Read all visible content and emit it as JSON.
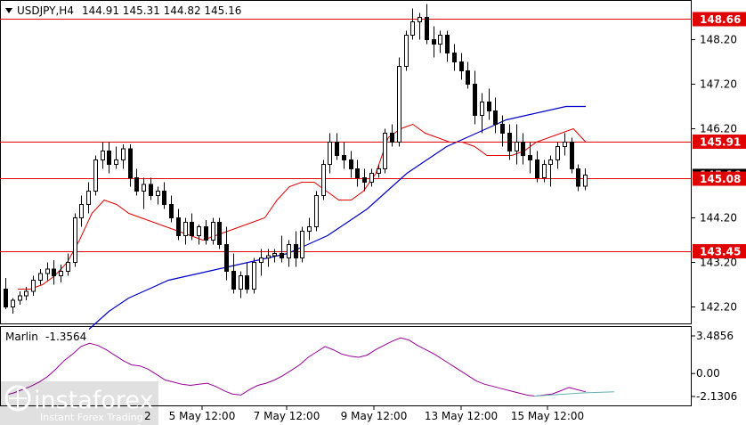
{
  "header": {
    "symbol": "USDJPY,H4",
    "ohlc": "144.91 145.31 144.82 145.16"
  },
  "indicator": {
    "name": "Marlin",
    "value": "-1.3564",
    "ticks": [
      "3.4856",
      "0.00",
      "-2.1306"
    ]
  },
  "watermark": {
    "brand": "instaforex",
    "tagline": "Instant Forex Trading"
  },
  "colors": {
    "candle_bull": "#ffffff",
    "candle_bear": "#000000",
    "sma_fast": "#e00000",
    "sma_slow": "#0000cc",
    "level_line": "#e00000",
    "oscillator": "#990099",
    "oscillator_signal": "#66b2b2"
  },
  "chart_data": {
    "type": "candlestick",
    "y_range": [
      141.9,
      149.15
    ],
    "y_ticks": [
      "148.20",
      "147.20",
      "146.20",
      "144.20",
      "143.20",
      "142.20"
    ],
    "x_ticks": [
      "5 May 12:00",
      "7 May 12:00",
      "9 May 12:00",
      "13 May 12:00",
      "15 May 12:00"
    ],
    "x_ticks_partial": "2",
    "levels": [
      {
        "value": 148.66,
        "label": "148.66"
      },
      {
        "value": 145.91,
        "label": "145.91"
      },
      {
        "value": 145.08,
        "label": "145.08"
      },
      {
        "value": 143.45,
        "label": "143.45"
      }
    ],
    "current_price": 145.16,
    "candles": [
      [
        142.6,
        142.85,
        142.15,
        142.2
      ],
      [
        142.2,
        142.4,
        142.05,
        142.35
      ],
      [
        142.35,
        142.55,
        142.25,
        142.45
      ],
      [
        142.45,
        142.65,
        142.35,
        142.55
      ],
      [
        142.55,
        142.9,
        142.45,
        142.8
      ],
      [
        142.8,
        143.05,
        142.7,
        142.95
      ],
      [
        142.95,
        143.2,
        142.8,
        143.05
      ],
      [
        143.05,
        143.25,
        142.7,
        142.9
      ],
      [
        142.9,
        143.15,
        142.75,
        143.0
      ],
      [
        143.0,
        143.4,
        142.9,
        143.2
      ],
      [
        143.2,
        144.3,
        143.1,
        144.2
      ],
      [
        144.2,
        144.7,
        144.0,
        144.5
      ],
      [
        144.5,
        145.0,
        144.3,
        144.8
      ],
      [
        144.8,
        145.6,
        144.7,
        145.5
      ],
      [
        145.5,
        145.9,
        145.3,
        145.7
      ],
      [
        145.7,
        145.9,
        145.2,
        145.4
      ],
      [
        145.4,
        145.8,
        145.3,
        145.5
      ],
      [
        145.5,
        145.85,
        145.3,
        145.75
      ],
      [
        145.75,
        145.85,
        144.9,
        145.1
      ],
      [
        145.1,
        145.3,
        144.7,
        144.8
      ],
      [
        144.8,
        145.1,
        144.4,
        144.95
      ],
      [
        144.95,
        145.1,
        144.6,
        144.7
      ],
      [
        144.7,
        144.9,
        144.5,
        144.8
      ],
      [
        144.8,
        145.0,
        144.4,
        144.5
      ],
      [
        144.5,
        144.7,
        144.1,
        144.2
      ],
      [
        144.2,
        144.4,
        143.7,
        143.8
      ],
      [
        143.8,
        144.2,
        143.6,
        144.1
      ],
      [
        144.1,
        144.3,
        143.7,
        143.8
      ],
      [
        143.8,
        144.05,
        143.6,
        144.0
      ],
      [
        144.0,
        144.15,
        143.6,
        143.7
      ],
      [
        143.7,
        144.2,
        143.6,
        144.1
      ],
      [
        144.1,
        144.2,
        143.5,
        143.6
      ],
      [
        143.6,
        144.0,
        142.8,
        143.0
      ],
      [
        143.0,
        143.4,
        142.5,
        142.6
      ],
      [
        142.6,
        143.0,
        142.4,
        142.9
      ],
      [
        142.9,
        143.2,
        142.5,
        142.6
      ],
      [
        142.6,
        143.3,
        142.5,
        143.2
      ],
      [
        143.2,
        143.5,
        142.9,
        143.3
      ],
      [
        143.3,
        143.5,
        143.1,
        143.35
      ],
      [
        143.35,
        143.5,
        143.2,
        143.4
      ],
      [
        143.4,
        143.8,
        143.2,
        143.3
      ],
      [
        143.3,
        143.7,
        143.1,
        143.6
      ],
      [
        143.6,
        143.9,
        143.1,
        143.3
      ],
      [
        143.3,
        144.0,
        143.2,
        143.9
      ],
      [
        143.9,
        144.2,
        143.7,
        144.0
      ],
      [
        144.0,
        144.8,
        143.9,
        144.7
      ],
      [
        144.7,
        145.5,
        144.6,
        145.4
      ],
      [
        145.4,
        146.1,
        145.2,
        145.9
      ],
      [
        145.9,
        146.1,
        145.5,
        145.6
      ],
      [
        145.6,
        145.9,
        145.3,
        145.5
      ],
      [
        145.5,
        145.7,
        145.1,
        145.3
      ],
      [
        145.3,
        145.5,
        144.9,
        145.1
      ],
      [
        145.1,
        145.3,
        144.8,
        145.0
      ],
      [
        145.0,
        145.3,
        144.9,
        145.2
      ],
      [
        145.2,
        145.4,
        145.1,
        145.3
      ],
      [
        145.3,
        146.2,
        145.2,
        146.1
      ],
      [
        146.1,
        146.3,
        145.8,
        145.9
      ],
      [
        145.9,
        147.8,
        145.8,
        147.6
      ],
      [
        147.6,
        148.4,
        147.5,
        148.3
      ],
      [
        148.3,
        148.9,
        148.2,
        148.6
      ],
      [
        148.6,
        148.8,
        148.2,
        148.7
      ],
      [
        148.7,
        149.0,
        148.1,
        148.2
      ],
      [
        148.2,
        148.5,
        147.8,
        148.1
      ],
      [
        148.1,
        148.4,
        147.9,
        148.3
      ],
      [
        148.3,
        148.4,
        147.7,
        147.9
      ],
      [
        147.9,
        148.1,
        147.5,
        147.7
      ],
      [
        147.7,
        147.9,
        147.3,
        147.5
      ],
      [
        147.5,
        147.7,
        147.1,
        147.2
      ],
      [
        147.2,
        147.5,
        146.3,
        146.5
      ],
      [
        146.5,
        147.0,
        146.1,
        146.8
      ],
      [
        146.8,
        147.1,
        146.4,
        146.6
      ],
      [
        146.6,
        146.9,
        146.1,
        146.3
      ],
      [
        146.3,
        146.5,
        145.8,
        146.1
      ],
      [
        146.1,
        146.3,
        145.5,
        145.7
      ],
      [
        145.7,
        146.3,
        145.4,
        145.9
      ],
      [
        145.9,
        146.1,
        145.4,
        145.6
      ],
      [
        145.6,
        145.9,
        145.2,
        145.5
      ],
      [
        145.5,
        145.7,
        145.0,
        145.1
      ],
      [
        145.1,
        145.5,
        145.0,
        145.4
      ],
      [
        145.4,
        145.6,
        144.9,
        145.5
      ],
      [
        145.5,
        145.9,
        145.3,
        145.8
      ],
      [
        145.8,
        146.1,
        145.6,
        145.9
      ],
      [
        145.9,
        146.0,
        145.2,
        145.3
      ],
      [
        145.3,
        145.4,
        144.8,
        144.91
      ],
      [
        144.91,
        145.31,
        144.82,
        145.16
      ]
    ],
    "sma_fast": [
      142.6,
      142.6,
      142.7,
      142.9,
      143.2,
      143.7,
      144.3,
      144.6,
      144.5,
      144.3,
      144.2,
      144.1,
      144.0,
      143.9,
      143.8,
      143.7,
      143.8,
      143.9,
      144.0,
      144.1,
      144.2,
      144.6,
      144.9,
      145.0,
      145.0,
      144.8,
      144.6,
      144.6,
      144.8,
      145.2,
      146.0,
      146.2,
      146.3,
      146.1,
      146.0,
      145.9,
      145.9,
      145.8,
      145.6,
      145.6,
      145.6,
      145.7,
      145.9,
      146.0,
      146.1,
      146.2,
      145.9
    ],
    "sma_slow": [
      141.7,
      142.1,
      142.4,
      142.6,
      142.8,
      142.9,
      143.0,
      143.1,
      143.2,
      143.3,
      143.4,
      143.6,
      143.8,
      144.1,
      144.4,
      144.8,
      145.2,
      145.5,
      145.8,
      146.0,
      146.2,
      146.4,
      146.5,
      146.6,
      146.7,
      146.7
    ],
    "oscillator": [
      -2.0,
      -1.8,
      -1.5,
      -1.2,
      -0.8,
      -0.3,
      0.4,
      1.2,
      1.8,
      2.5,
      2.8,
      2.6,
      2.2,
      1.7,
      1.2,
      0.8,
      0.7,
      0.4,
      -0.1,
      -0.6,
      -0.8,
      -1.0,
      -1.1,
      -1.0,
      -0.9,
      -1.2,
      -1.6,
      -1.9,
      -2.0,
      -1.5,
      -1.1,
      -0.9,
      -0.6,
      -0.2,
      0.3,
      0.8,
      1.5,
      2.0,
      2.5,
      2.2,
      1.8,
      1.6,
      1.5,
      1.7,
      2.2,
      2.6,
      3.0,
      3.3,
      3.1,
      2.6,
      2.2,
      1.8,
      1.3,
      0.8,
      0.3,
      -0.2,
      -0.7,
      -1.0,
      -1.2,
      -1.4,
      -1.6,
      -1.8,
      -2.0,
      -2.1,
      -2.0,
      -1.9,
      -1.6,
      -1.3,
      -1.5,
      -1.7
    ],
    "oscillator_signal": [
      -2.1,
      -2.0,
      -1.9,
      -1.8,
      -1.75,
      -1.7
    ]
  }
}
